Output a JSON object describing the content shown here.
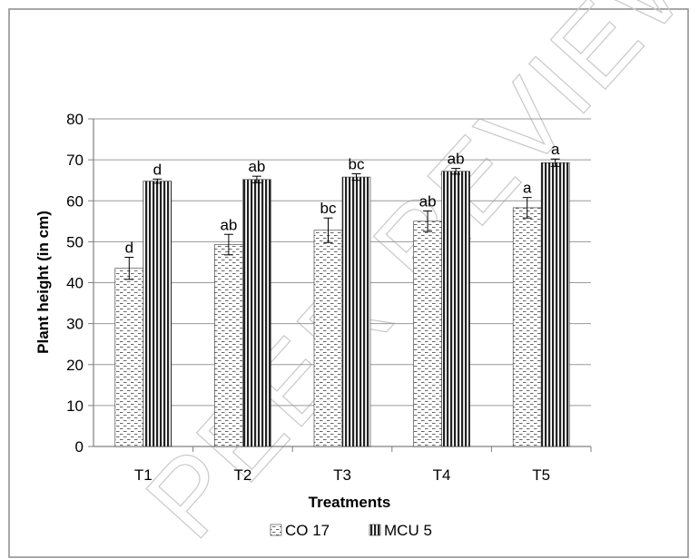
{
  "watermark": "PEER REVIEW",
  "colors": {
    "axis": "#808080",
    "grid": "#9a9a9a",
    "bar_stroke": "#333333",
    "pattern": "#555555",
    "watermark": "#c9c9c9"
  },
  "chart_data": {
    "type": "bar",
    "title": "",
    "xlabel": "Treatments",
    "ylabel": "Plant height (in cm)",
    "categories": [
      "T1",
      "T2",
      "T3",
      "T4",
      "T5"
    ],
    "ylim": [
      0,
      80
    ],
    "yticks": [
      "0",
      "10",
      "20",
      "30",
      "40",
      "50",
      "60",
      "70",
      "80"
    ],
    "grid": true,
    "legend_position": "bottom",
    "series": [
      {
        "name": "CO 17",
        "pattern": "dashed-dots",
        "values": [
          43.5,
          49.3,
          52.8,
          55.0,
          58.3
        ],
        "errors": [
          2.7,
          2.5,
          3.0,
          2.5,
          2.5
        ],
        "labels": [
          "d",
          "ab",
          "bc",
          "ab",
          "a"
        ]
      },
      {
        "name": "MCU 5",
        "pattern": "vertical-stripes",
        "values": [
          64.8,
          65.2,
          65.8,
          67.2,
          69.3
        ],
        "errors": [
          0.5,
          0.8,
          0.8,
          0.7,
          0.9
        ],
        "labels": [
          "d",
          "ab",
          "bc",
          "ab",
          "a"
        ]
      }
    ]
  }
}
